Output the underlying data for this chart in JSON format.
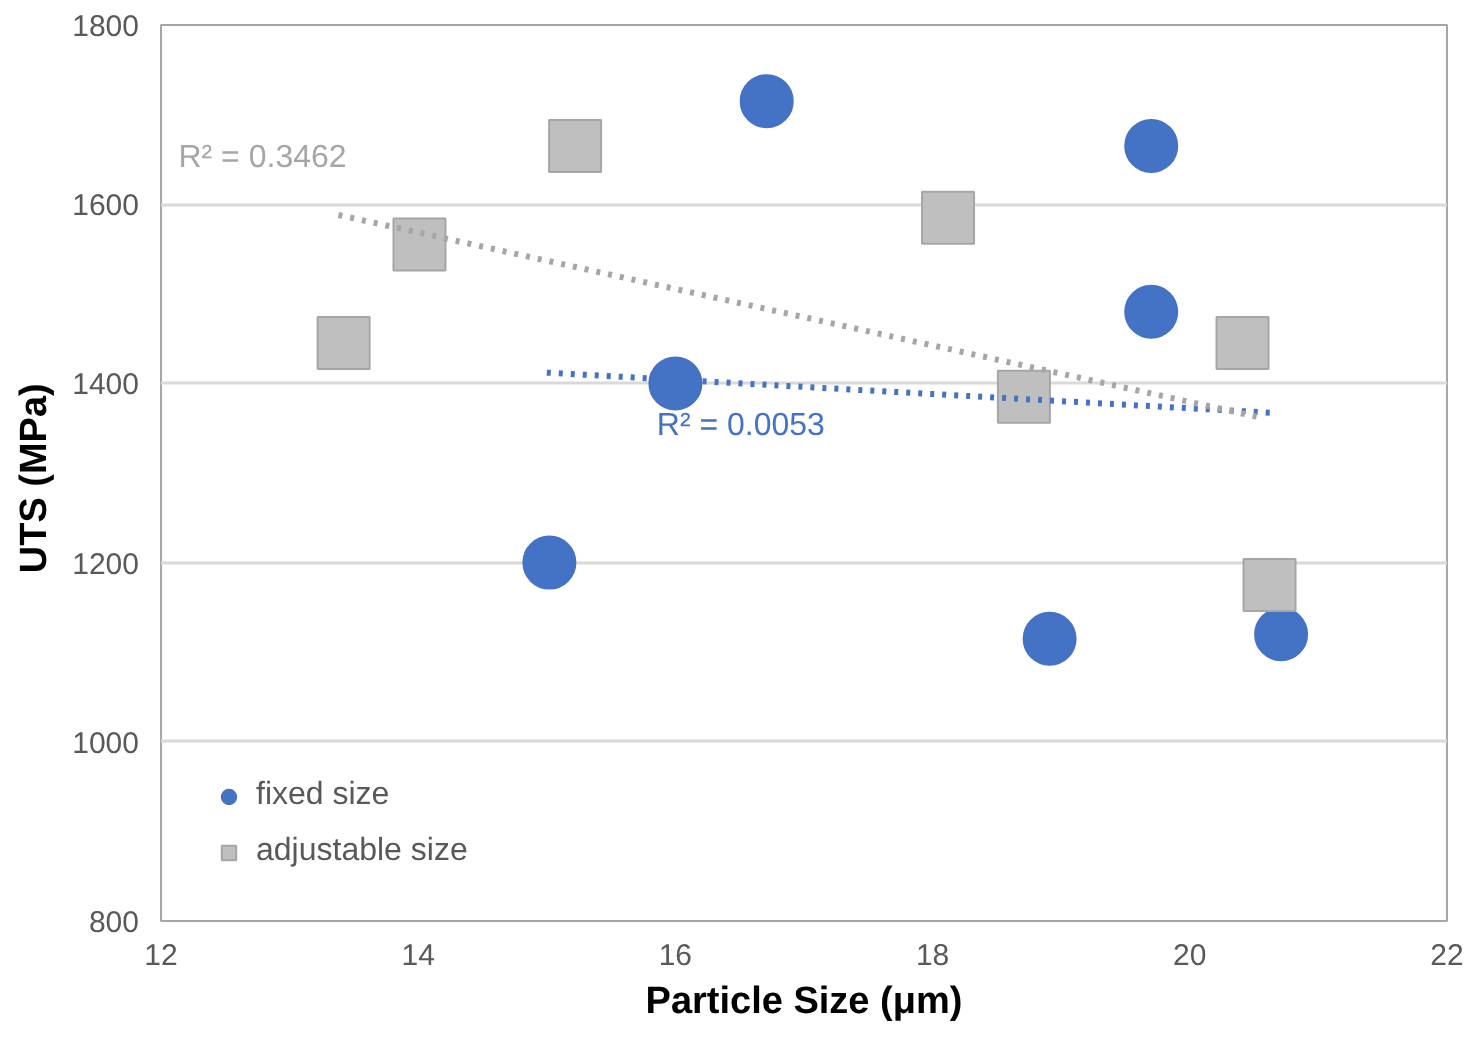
{
  "chart_data": {
    "type": "scatter",
    "xlabel": "Particle Size (μm)",
    "ylabel": "UTS  (MPa)",
    "xlim": [
      12,
      22
    ],
    "ylim": [
      800,
      1800
    ],
    "xticks": [
      12,
      14,
      16,
      18,
      20,
      22
    ],
    "yticks": [
      800,
      1000,
      1200,
      1400,
      1600,
      1800
    ],
    "grid": "y",
    "legend": "bottom left",
    "series": [
      {
        "name": "fixed size",
        "color": "#4472c4",
        "marker": "circle",
        "x": [
          16.71,
          19.7,
          19.7,
          16.0,
          15.02,
          18.91,
          20.71
        ],
        "values": [
          1715,
          1665,
          1480,
          1400,
          1200,
          1115,
          1120
        ]
      },
      {
        "name": "adjustable size",
        "color": "#bfbfbf",
        "marker": "square",
        "x": [
          15.22,
          14.01,
          13.42,
          18.12,
          18.71,
          20.41,
          20.62
        ],
        "values": [
          1665,
          1555,
          1445,
          1585,
          1385,
          1445,
          1175
        ]
      },
      {
        "type": "line",
        "color": "#4472c4",
        "line_style": "dotted",
        "x": [
          15.0,
          20.66
        ],
        "values": [
          1412,
          1367
        ]
      },
      {
        "type": "line",
        "color": "#a6a6a6",
        "line_style": "dotted",
        "x": [
          13.38,
          20.58
        ],
        "values": [
          1588,
          1361
        ]
      }
    ],
    "annotations": [
      "R² = 0.0053",
      "R² = 0.3462"
    ]
  }
}
